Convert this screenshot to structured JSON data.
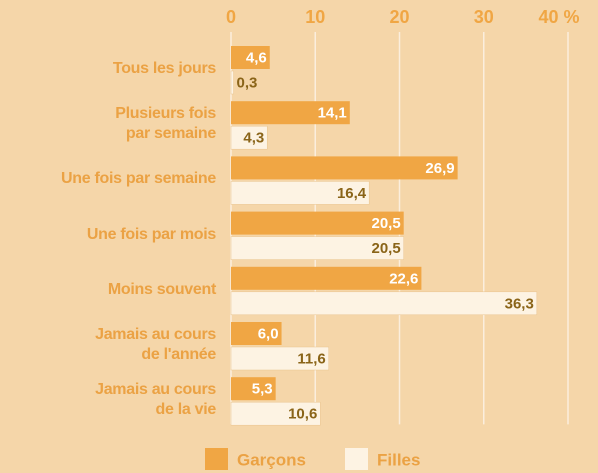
{
  "chart_data": {
    "type": "bar",
    "orientation": "horizontal",
    "categories": [
      "Tous les jours",
      "Plusieurs fois\npar semaine",
      "Une fois par semaine",
      "Une fois par mois",
      "Moins souvent",
      "Jamais au cours\nde l'année",
      "Jamais au cours\nde la vie"
    ],
    "series": [
      {
        "name": "Garçons",
        "color": "#f0a644",
        "values": [
          4.6,
          14.1,
          26.9,
          20.5,
          22.6,
          6.0,
          5.3
        ],
        "value_labels": [
          "4,6",
          "14,1",
          "26,9",
          "20,5",
          "22,6",
          "6,0",
          "5,3"
        ]
      },
      {
        "name": "Filles",
        "color": "#fdf3e3",
        "values": [
          0.3,
          4.3,
          16.4,
          20.5,
          36.3,
          11.6,
          10.6
        ],
        "value_labels": [
          "0,3",
          "4,3",
          "16,4",
          "20,5",
          "36,3",
          "11,6",
          "10,6"
        ]
      }
    ],
    "xlim": [
      0,
      40
    ],
    "xticks": [
      0,
      10,
      20,
      30,
      {
        "value": 40,
        "label": "40 %"
      }
    ],
    "grid": true,
    "legend": "bottom"
  }
}
